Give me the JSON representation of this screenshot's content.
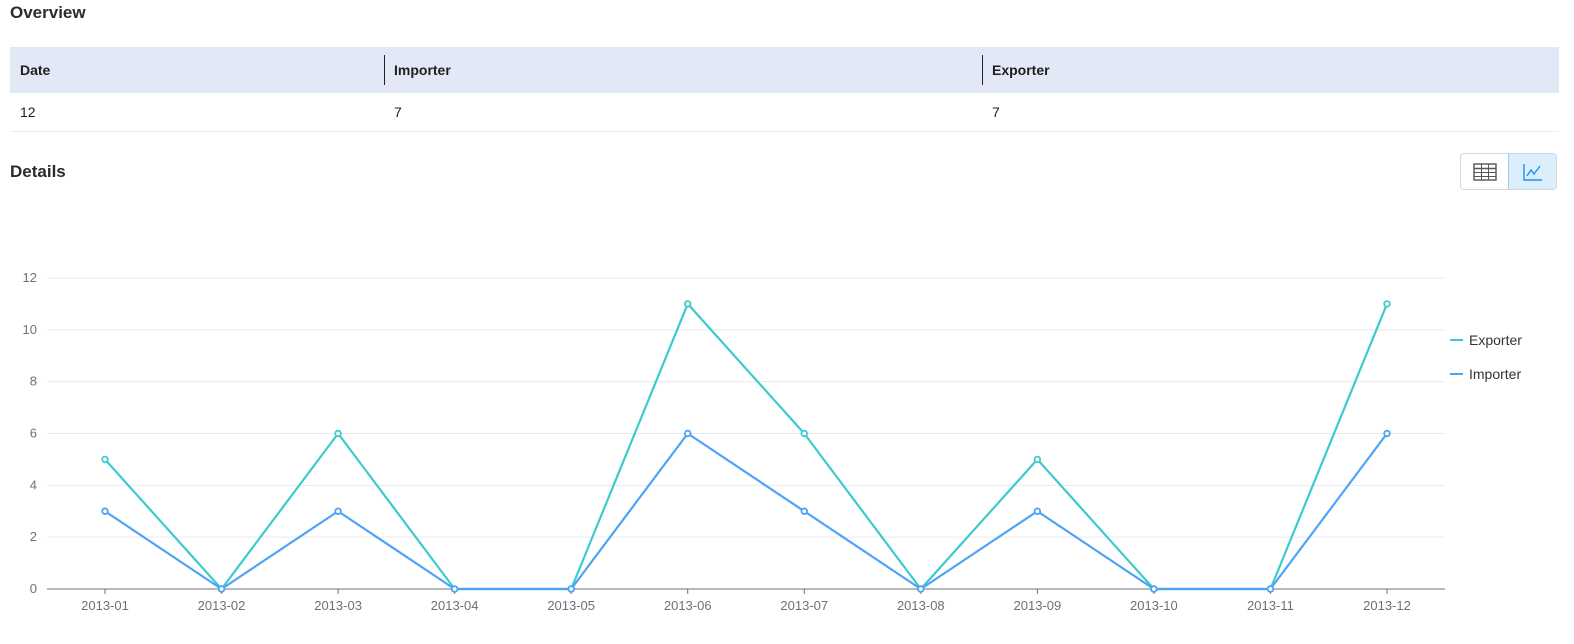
{
  "overview": {
    "title": "Overview",
    "columns": [
      "Date",
      "Importer",
      "Exporter"
    ],
    "row": [
      "12",
      "7",
      "7"
    ]
  },
  "details": {
    "title": "Details",
    "toggle": {
      "table_icon": "table-icon",
      "chart_icon": "line-chart-icon",
      "active": "chart"
    }
  },
  "colors": {
    "exporter": "#3ccbcd",
    "importer": "#4da3f5",
    "header_bg": "#e3e8f6",
    "active_toggle": "#ddeefb"
  },
  "chart_data": {
    "type": "line",
    "categories": [
      "2013-01",
      "2013-02",
      "2013-03",
      "2013-04",
      "2013-05",
      "2013-06",
      "2013-07",
      "2013-08",
      "2013-09",
      "2013-10",
      "2013-11",
      "2013-12"
    ],
    "series": [
      {
        "name": "Exporter",
        "color": "#3ccbcd",
        "values": [
          5,
          0,
          6,
          0,
          0,
          11,
          6,
          0,
          5,
          0,
          0,
          11
        ]
      },
      {
        "name": "Importer",
        "color": "#4da3f5",
        "values": [
          3,
          0,
          3,
          0,
          0,
          6,
          3,
          0,
          3,
          0,
          0,
          6
        ]
      }
    ],
    "ylim": [
      0,
      12
    ],
    "yticks": [
      0,
      2,
      4,
      6,
      8,
      10,
      12
    ],
    "grid": true,
    "legend_position": "right",
    "markers": "hollow-circle"
  }
}
